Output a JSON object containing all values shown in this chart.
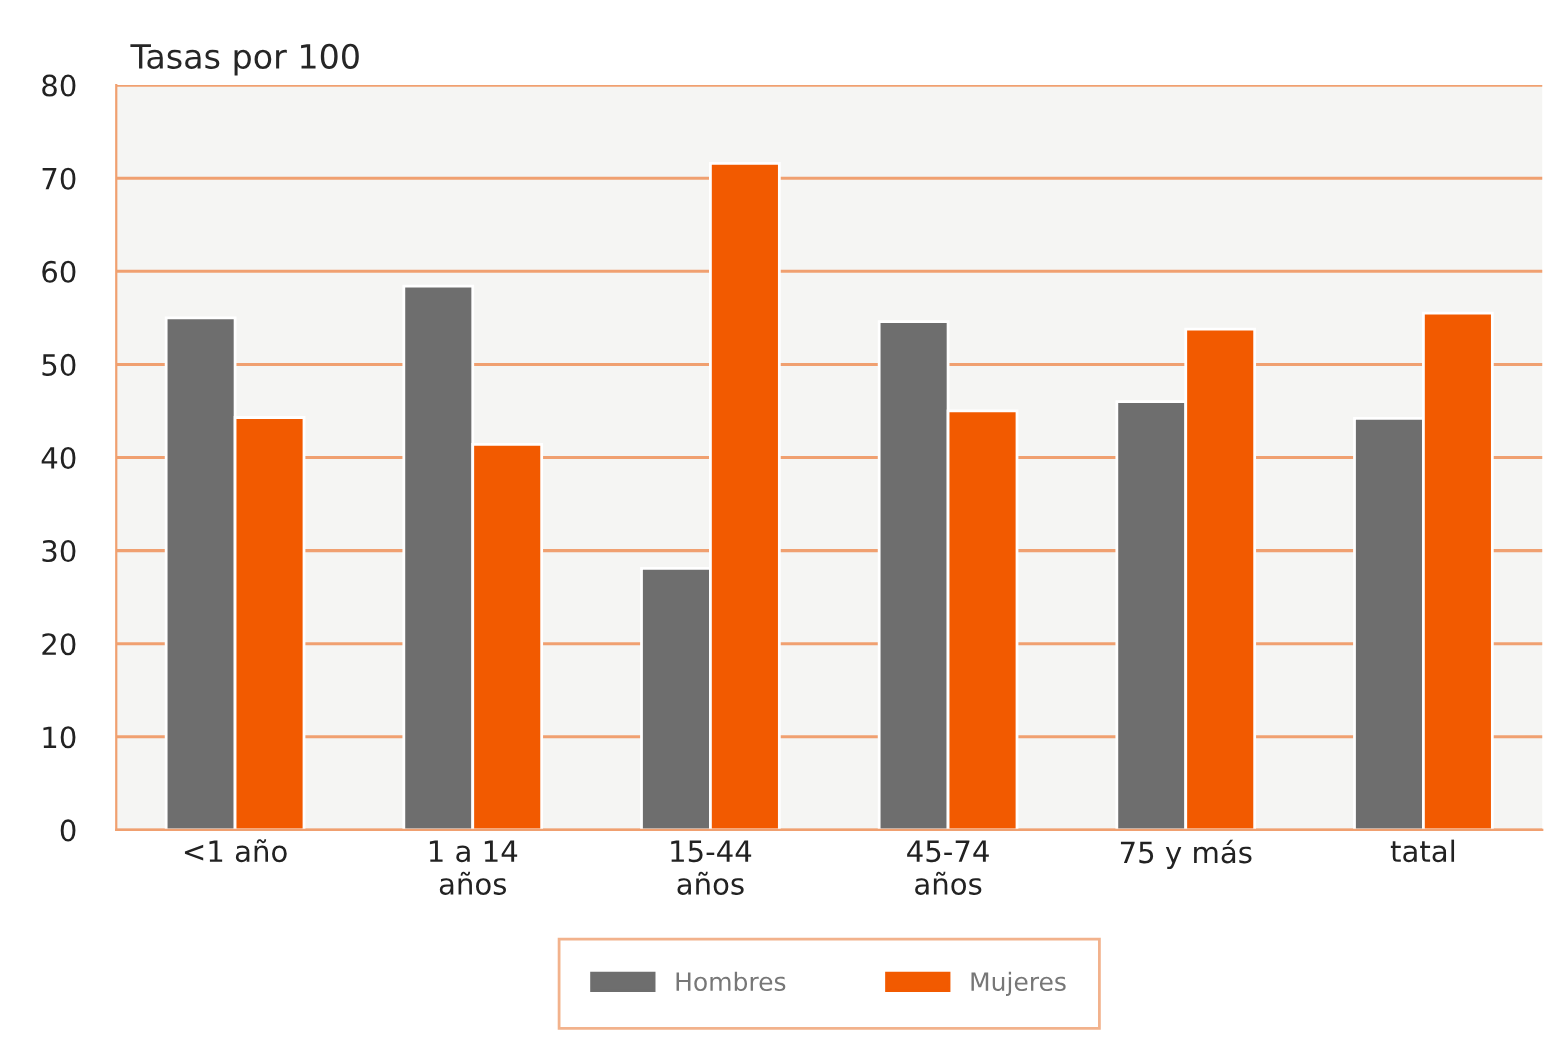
{
  "chart_data": {
    "type": "bar",
    "title": "Tasas por 100",
    "categories": [
      "<1 año",
      "1 a 14\naños",
      "15-44\naños",
      "45-74\naños",
      "75 y más",
      "tatal"
    ],
    "series": [
      {
        "name": "Hombres",
        "color": "#6e6e6e",
        "values": [
          55.0,
          58.4,
          28.1,
          54.6,
          46.0,
          44.2
        ]
      },
      {
        "name": "Mujeres",
        "color": "#f25a00",
        "values": [
          44.3,
          41.4,
          71.6,
          45.0,
          53.8,
          55.5
        ]
      }
    ],
    "ylim": [
      0,
      80
    ],
    "yticks": [
      0,
      10,
      20,
      30,
      40,
      50,
      60,
      70,
      80
    ],
    "grid": "y",
    "legend": "bottom"
  }
}
